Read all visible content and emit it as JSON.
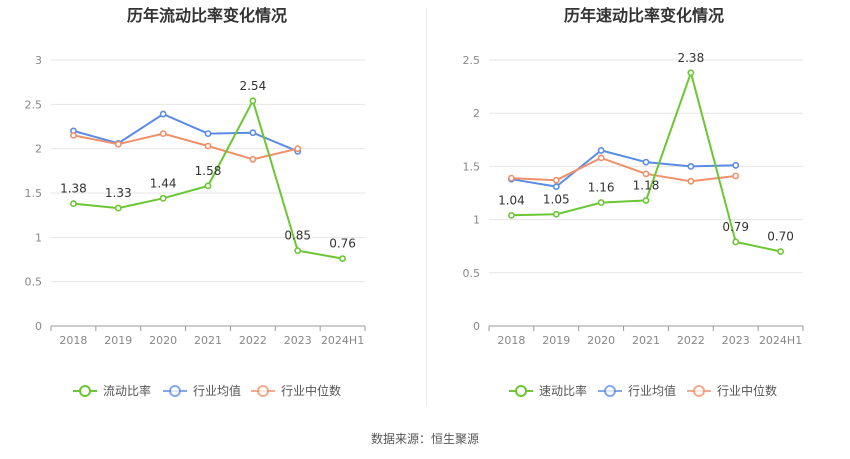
{
  "colors": {
    "primary": "#6cc634",
    "avg": "#5b8ce5",
    "median": "#f0906a",
    "grid": "#e6e6e6",
    "axis": "#999999",
    "tick_text": "#888888",
    "title": "#333333",
    "label": "#333333"
  },
  "source": "数据来源：恒生聚源",
  "chart_data": [
    {
      "type": "line",
      "title": "历年流动比率变化情况",
      "categories": [
        "2018",
        "2019",
        "2020",
        "2021",
        "2022",
        "2023",
        "2024H1"
      ],
      "ylim": [
        0,
        3
      ],
      "yticks": [
        "0",
        "0.5",
        "1",
        "1.5",
        "2",
        "2.5",
        "3"
      ],
      "yticks_values": [
        0,
        0.5,
        1,
        1.5,
        2,
        2.5,
        3
      ],
      "grid": true,
      "legend_position": "bottom",
      "series": [
        {
          "name": "流动比率",
          "color": "#6cc634",
          "labels": true,
          "values": [
            1.38,
            1.33,
            1.44,
            1.58,
            2.54,
            0.85,
            0.76
          ],
          "label_text": [
            "1.38",
            "1.33",
            "1.44",
            "1.58",
            "2.54",
            "0.85",
            "0.76"
          ]
        },
        {
          "name": "行业均值",
          "color": "#5b8ce5",
          "labels": false,
          "values": [
            2.2,
            2.06,
            2.39,
            2.17,
            2.18,
            1.97,
            null
          ]
        },
        {
          "name": "行业中位数",
          "color": "#f0906a",
          "labels": false,
          "values": [
            2.15,
            2.05,
            2.17,
            2.03,
            1.88,
            2.0,
            null
          ]
        }
      ]
    },
    {
      "type": "line",
      "title": "历年速动比率变化情况",
      "categories": [
        "2018",
        "2019",
        "2020",
        "2021",
        "2022",
        "2023",
        "2024H1"
      ],
      "ylim": [
        0,
        2.5
      ],
      "yticks": [
        "0",
        "0.5",
        "1",
        "1.5",
        "2",
        "2.5"
      ],
      "yticks_values": [
        0,
        0.5,
        1,
        1.5,
        2,
        2.5
      ],
      "grid": true,
      "legend_position": "bottom",
      "series": [
        {
          "name": "速动比率",
          "color": "#6cc634",
          "labels": true,
          "values": [
            1.04,
            1.05,
            1.16,
            1.18,
            2.38,
            0.79,
            0.7
          ],
          "label_text": [
            "1.04",
            "1.05",
            "1.16",
            "1.18",
            "2.38",
            "0.79",
            "0.70"
          ]
        },
        {
          "name": "行业均值",
          "color": "#5b8ce5",
          "labels": false,
          "values": [
            1.38,
            1.31,
            1.65,
            1.54,
            1.5,
            1.51,
            null
          ]
        },
        {
          "name": "行业中位数",
          "color": "#f0906a",
          "labels": false,
          "values": [
            1.39,
            1.37,
            1.58,
            1.43,
            1.36,
            1.41,
            null
          ]
        }
      ]
    }
  ]
}
